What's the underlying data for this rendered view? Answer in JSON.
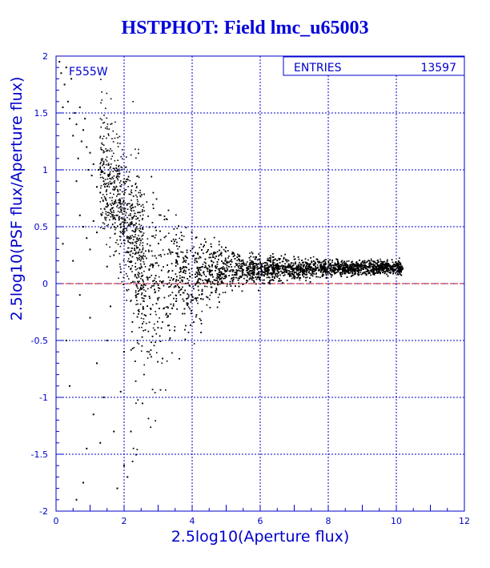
{
  "chart_data": {
    "type": "scatter",
    "title": "HSTPHOT: Field lmc_u65003",
    "xlabel": "2.5log10(Aperture flux)",
    "ylabel": "2.5log10(PSF flux/Aperture flux)",
    "xlim": [
      0,
      12
    ],
    "ylim": [
      -2,
      2
    ],
    "x_ticks": [
      "0",
      "2",
      "4",
      "6",
      "8",
      "10",
      "12"
    ],
    "y_ticks": [
      "-2",
      "-1.5",
      "-1",
      "-0.5",
      "0",
      "0.5",
      "1",
      "1.5",
      "2"
    ],
    "grid": true,
    "annotation": "F555W",
    "stats": {
      "label": "ENTRIES",
      "value": "13597"
    },
    "reference_line": {
      "y": 0,
      "color": "#cc0000",
      "style": "dashed"
    },
    "point_color": "#000000",
    "axis_color": "#0000cc",
    "series": [
      {
        "points": [
          [
            0.1,
            1.95
          ],
          [
            0.15,
            1.85
          ],
          [
            0.2,
            1.55
          ],
          [
            0.25,
            1.75
          ],
          [
            0.3,
            1.9
          ],
          [
            0.35,
            1.6
          ],
          [
            0.4,
            1.45
          ],
          [
            0.45,
            1.8
          ],
          [
            0.5,
            1.3
          ],
          [
            0.55,
            1.5
          ],
          [
            0.6,
            1.4
          ],
          [
            0.65,
            1.1
          ],
          [
            0.7,
            1.55
          ],
          [
            0.75,
            1.25
          ],
          [
            0.8,
            1.35
          ],
          [
            0.85,
            1.45
          ],
          [
            0.9,
            1.2
          ],
          [
            0.95,
            1.0
          ],
          [
            1.0,
            1.15
          ],
          [
            1.05,
            0.95
          ],
          [
            1.1,
            1.05
          ],
          [
            1.2,
            0.85
          ],
          [
            1.25,
            1.0
          ],
          [
            1.3,
            0.8
          ],
          [
            1.4,
            0.9
          ],
          [
            1.45,
            0.75
          ],
          [
            1.5,
            0.7
          ],
          [
            1.55,
            0.95
          ],
          [
            1.6,
            0.65
          ],
          [
            1.7,
            0.85
          ],
          [
            1.8,
            0.6
          ],
          [
            1.9,
            0.7
          ],
          [
            0.6,
            0.9
          ],
          [
            0.7,
            0.6
          ],
          [
            0.8,
            0.5
          ],
          [
            0.9,
            0.4
          ],
          [
            1.0,
            0.3
          ],
          [
            1.1,
            0.55
          ],
          [
            1.2,
            0.45
          ],
          [
            0.5,
            0.2
          ],
          [
            0.4,
            -0.9
          ],
          [
            0.9,
            -1.45
          ],
          [
            1.1,
            -1.15
          ],
          [
            0.3,
            -0.5
          ],
          [
            0.6,
            -1.9
          ],
          [
            0.8,
            -1.75
          ],
          [
            1.3,
            -1.4
          ],
          [
            1.5,
            -0.5
          ],
          [
            1.7,
            -1.3
          ],
          [
            1.9,
            -0.95
          ],
          [
            2.0,
            -1.6
          ],
          [
            2.1,
            -1.7
          ],
          [
            2.2,
            -1.3
          ],
          [
            1.8,
            -1.8
          ],
          [
            1.4,
            -1.0
          ],
          [
            1.6,
            -0.2
          ],
          [
            1.2,
            -0.7
          ],
          [
            1.0,
            -0.3
          ],
          [
            0.7,
            -0.1
          ],
          [
            0.2,
            0.35
          ],
          [
            2.0,
            -0.6
          ],
          [
            1.9,
            0.1
          ],
          [
            1.7,
            0.25
          ],
          [
            1.5,
            0.15
          ]
        ]
      }
    ]
  }
}
